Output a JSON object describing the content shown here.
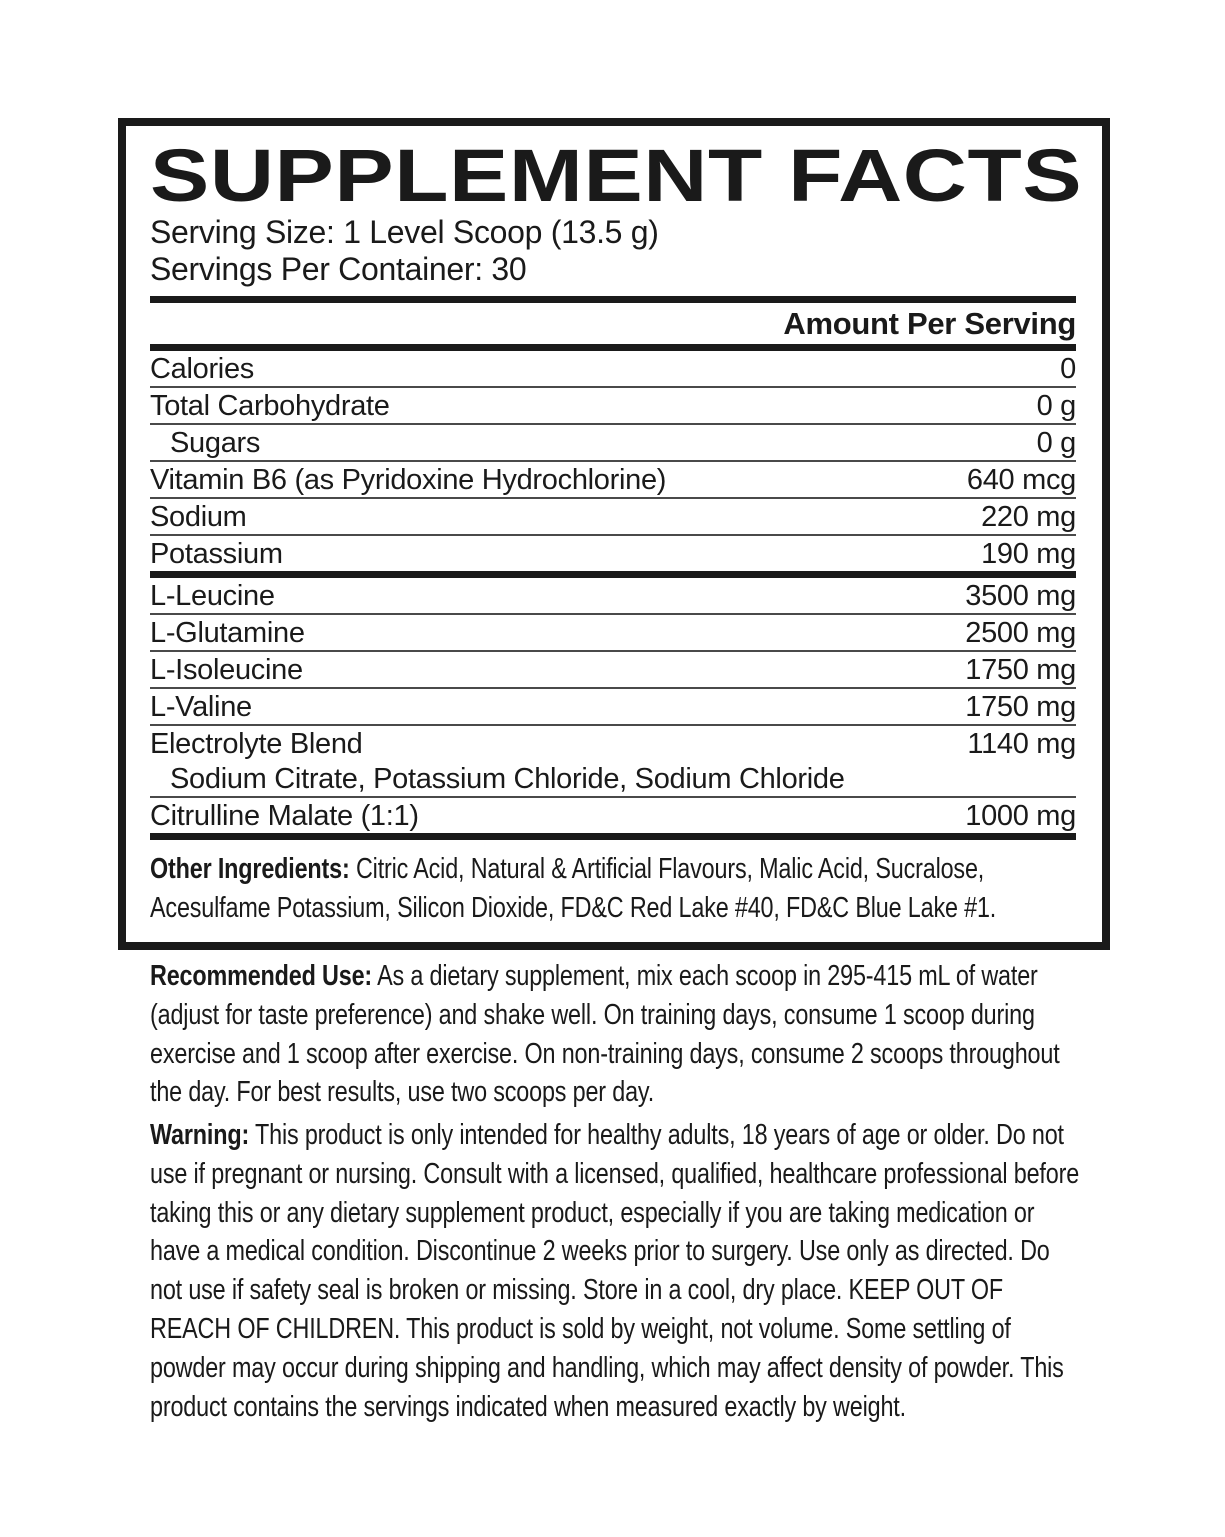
{
  "label": {
    "title": "SUPPLEMENT FACTS",
    "serving_size": "Serving Size: 1 Level Scoop (13.5 g)",
    "servings_per_container": "Servings Per Container: 30",
    "amount_header": "Amount Per Serving",
    "rows": [
      {
        "name": "Calories",
        "value": "0",
        "indent": false,
        "sep": "thin"
      },
      {
        "name": "Total Carbohydrate",
        "value": "0 g",
        "indent": false,
        "sep": "thin"
      },
      {
        "name": "Sugars",
        "value": "0 g",
        "indent": true,
        "sep": "thin"
      },
      {
        "name": "Vitamin B6 (as Pyridoxine Hydrochlorine)",
        "value": "640 mcg",
        "indent": false,
        "sep": "thin"
      },
      {
        "name": "Sodium",
        "value": "220 mg",
        "indent": false,
        "sep": "thin"
      },
      {
        "name": "Potassium",
        "value": "190 mg",
        "indent": false,
        "sep": "thick"
      },
      {
        "name": "L-Leucine",
        "value": "3500 mg",
        "indent": false,
        "sep": "thin"
      },
      {
        "name": "L-Glutamine",
        "value": "2500 mg",
        "indent": false,
        "sep": "thin"
      },
      {
        "name": "L-Isoleucine",
        "value": "1750 mg",
        "indent": false,
        "sep": "thin"
      },
      {
        "name": "L-Valine",
        "value": "1750 mg",
        "indent": false,
        "sep": "thin"
      },
      {
        "name": "Electrolyte Blend",
        "value": "1140 mg",
        "indent": false,
        "sep": "none"
      },
      {
        "name": "Sodium Citrate, Potassium Chloride, Sodium Chloride",
        "value": "",
        "indent": true,
        "sep": "thin"
      },
      {
        "name": "Citrulline Malate (1:1)",
        "value": "1000 mg",
        "indent": false,
        "sep": "thick"
      }
    ],
    "other_ingredients": {
      "label": "Other Ingredients:",
      "text": "Citric Acid, Natural & Artificial Flavours, Malic Acid, Sucralose, Acesulfame Potassium, Silicon Dioxide, FD&C Red Lake #40, FD&C Blue Lake #1."
    }
  },
  "paragraphs": [
    {
      "label": "Recommended Use:",
      "text": "As a dietary supplement, mix each scoop in 295-415 mL of water (adjust for taste preference) and shake well. On training days, consume 1 scoop during exercise and 1 scoop after exercise. On non-training days, consume 2 scoops throughout the day. For best results, use two scoops per day."
    },
    {
      "label": "Warning:",
      "text": "This product is only intended for healthy adults, 18 years of age or older. Do not use if pregnant or nursing. Consult with a licensed, qualified, healthcare professional before taking this or any dietary supplement product, especially if you are taking medication or have a medical condition. Discontinue 2 weeks prior to surgery. Use only as directed. Do not use if safety seal is broken or missing. Store in a cool, dry place. KEEP OUT OF REACH OF CHILDREN. This product is sold by weight, not volume. Some settling of powder may occur during shipping and handling, which may affect density of powder. This product contains the servings indicated when measured exactly by weight."
    }
  ],
  "colors": {
    "ink": "#1a1a1a",
    "thin_rule": "#4a4a4a",
    "background": "#ffffff"
  }
}
